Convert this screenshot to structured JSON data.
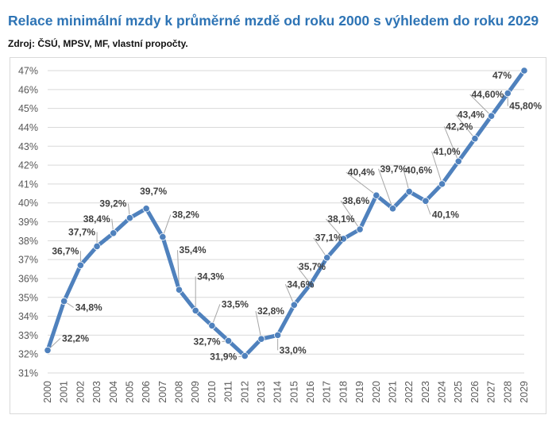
{
  "title": "Relace minimální mzdy k průměrné mzdě od roku 2000 s výhledem do roku 2029",
  "source": "Zdroj: ČSÚ, MPSV, MF, vlastní propočty.",
  "colors": {
    "line": "#4f81bd",
    "title": "#2e74b5",
    "grid": "#d9d9d9",
    "leader": "#a6a6a6"
  },
  "chart_data": {
    "type": "line",
    "title": "Relace minimální mzdy k průměrné mzdě od roku 2000 s výhledem do roku 2029",
    "xlabel": "",
    "ylabel": "",
    "ylim": [
      31,
      47
    ],
    "grid": true,
    "legend": "none",
    "categories": [
      "2000",
      "2001",
      "2002",
      "2003",
      "2004",
      "2005",
      "2006",
      "2007",
      "2008",
      "2009",
      "2010",
      "2011",
      "2012",
      "2013",
      "2014",
      "2015",
      "2016",
      "2017",
      "2018",
      "2019",
      "2020",
      "2021",
      "2022",
      "2023",
      "2024",
      "2025",
      "2026",
      "2027",
      "2028",
      "2029"
    ],
    "values": [
      32.2,
      34.8,
      36.7,
      37.7,
      38.4,
      39.2,
      39.7,
      38.2,
      35.4,
      34.3,
      33.5,
      32.7,
      31.9,
      32.8,
      33.0,
      34.6,
      35.7,
      37.1,
      38.1,
      38.6,
      40.4,
      39.7,
      40.6,
      40.1,
      41.0,
      42.2,
      43.4,
      44.6,
      45.8,
      47.0
    ],
    "labels": [
      "32,2%",
      "34,8%",
      "36,7%",
      "37,7%",
      "38,4%",
      "39,2%",
      "39,7%",
      "38,2%",
      "35,4%",
      "34,3%",
      "33,5%",
      "32,7%",
      "31,9%",
      "32,8%",
      "33,0%",
      "34,6%",
      "35,7%",
      "37,1%",
      "38,1%",
      "38,6%",
      "40,4%",
      "39,7%",
      "40,6%",
      "40,1%",
      "41,0%",
      "42,2%",
      "43,4%",
      "44,60%",
      "45,80%",
      "47%"
    ],
    "yticks": [
      "31%",
      "32%",
      "33%",
      "34%",
      "35%",
      "36%",
      "37%",
      "38%",
      "39%",
      "40%",
      "41%",
      "42%",
      "43%",
      "44%",
      "45%",
      "46%",
      "47%"
    ]
  }
}
